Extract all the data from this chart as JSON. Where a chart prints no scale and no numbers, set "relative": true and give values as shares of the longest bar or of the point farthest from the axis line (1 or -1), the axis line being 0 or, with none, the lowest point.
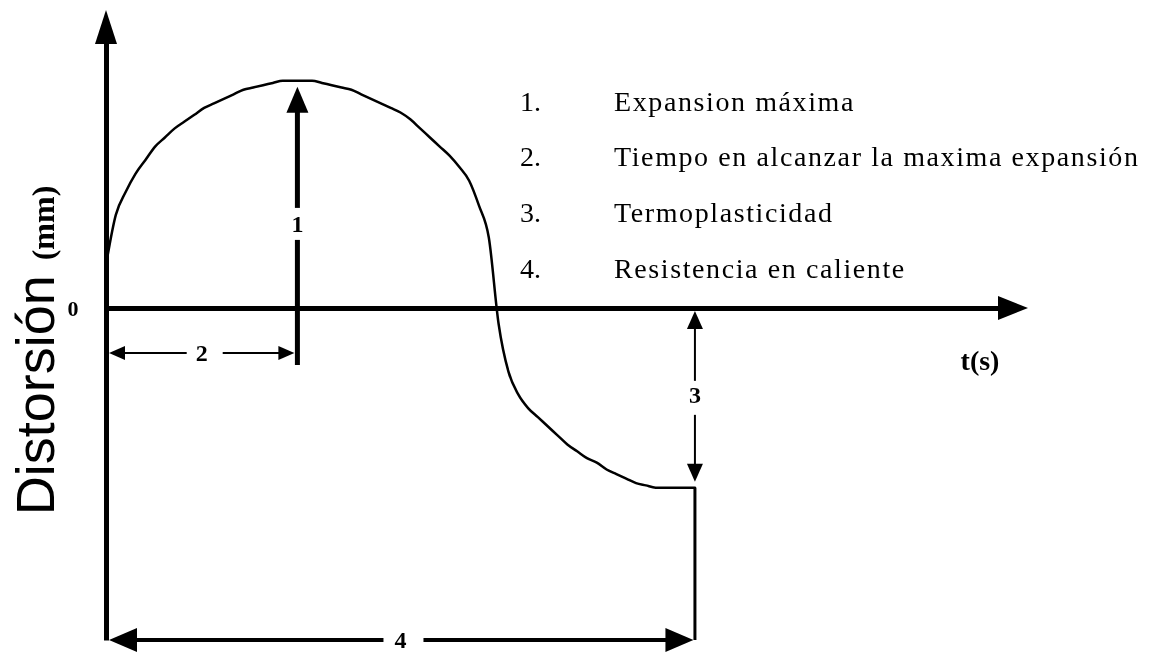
{
  "chart_data": {
    "type": "line",
    "relative": true,
    "ylabel": "Distorsión (mm)",
    "color": "#000000",
    "categories": [
      null,
      null,
      null,
      null,
      null,
      null,
      null,
      null,
      null,
      null,
      null,
      null,
      null,
      null,
      null,
      null,
      null,
      null,
      null,
      null,
      null,
      null,
      null,
      null,
      null,
      null,
      null,
      null,
      null,
      null,
      null,
      null,
      null,
      null,
      null,
      null,
      null,
      null,
      null,
      null,
      null,
      null,
      null,
      null,
      null,
      null,
      null,
      null,
      null,
      null,
      null,
      null,
      null,
      null,
      null,
      null,
      null,
      null,
      null,
      null,
      null
    ],
    "values": [
      0.19,
      0.41,
      0.51,
      0.59,
      0.65,
      0.71,
      0.75,
      0.79,
      0.82,
      0.85,
      0.88,
      0.9,
      0.92,
      0.94,
      0.96,
      0.97,
      0.98,
      0.99,
      1,
      1,
      1,
      1,
      0.99,
      0.98,
      0.97,
      0.96,
      0.94,
      0.92,
      0.9,
      0.88,
      0.86,
      0.83,
      0.79,
      0.75,
      0.71,
      0.67,
      0.62,
      0.56,
      0.45,
      0.31,
      -0.07,
      -0.28,
      -0.38,
      -0.44,
      -0.48,
      -0.52,
      -0.56,
      -0.6,
      -0.63,
      -0.66,
      -0.68,
      -0.71,
      -0.73,
      -0.75,
      -0.77,
      -0.78,
      -0.79,
      -0.79,
      -0.79,
      -0.79,
      -0.79
    ],
    "annotations": [
      "0",
      "1",
      "2",
      "3",
      "4",
      "t(s)",
      "1.",
      "Expansion máxima",
      "2.",
      "Tiempo en alcanzar la maxima expansión",
      "3.",
      "Termoplasticidad",
      "4.",
      "Resistencia en caliente"
    ]
  }
}
